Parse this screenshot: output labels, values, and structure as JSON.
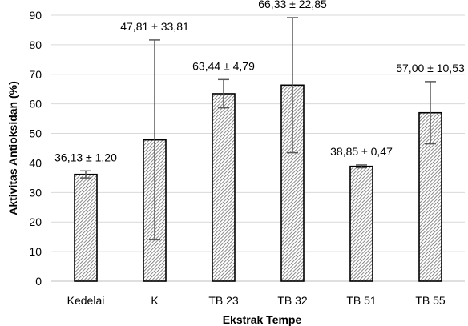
{
  "chart_data": {
    "type": "bar",
    "xlabel": "Ekstrak Tempe",
    "ylabel": "Aktivitas Antioksidan (%)",
    "ylim": [
      0,
      90
    ],
    "yticks": [
      0,
      10,
      20,
      30,
      40,
      50,
      60,
      70,
      80,
      90
    ],
    "ytick_labels": [
      "0",
      "10",
      "20",
      "30",
      "40",
      "50",
      "60",
      "70",
      "80",
      "90"
    ],
    "categories": [
      "Kedelai",
      "K",
      "TB 23",
      "TB 32",
      "TB 51",
      "TB 55"
    ],
    "values": [
      36.13,
      47.81,
      63.44,
      66.33,
      38.85,
      57.0
    ],
    "errors": [
      1.2,
      33.81,
      4.79,
      22.85,
      0.47,
      10.53
    ],
    "data_labels": [
      "36,13 ± 1,20",
      "47,81 ± 33,81",
      "63,44 ± 4,79",
      "66,33 ± 22,85",
      "38,85 ± 0,47",
      "57,00 ± 10,53"
    ],
    "grid": true,
    "bar_fill": "hatched-gray",
    "colors": {
      "gridline": "#d9d9d9",
      "bar_stroke": "#000000",
      "error_bar": "#595959"
    }
  }
}
